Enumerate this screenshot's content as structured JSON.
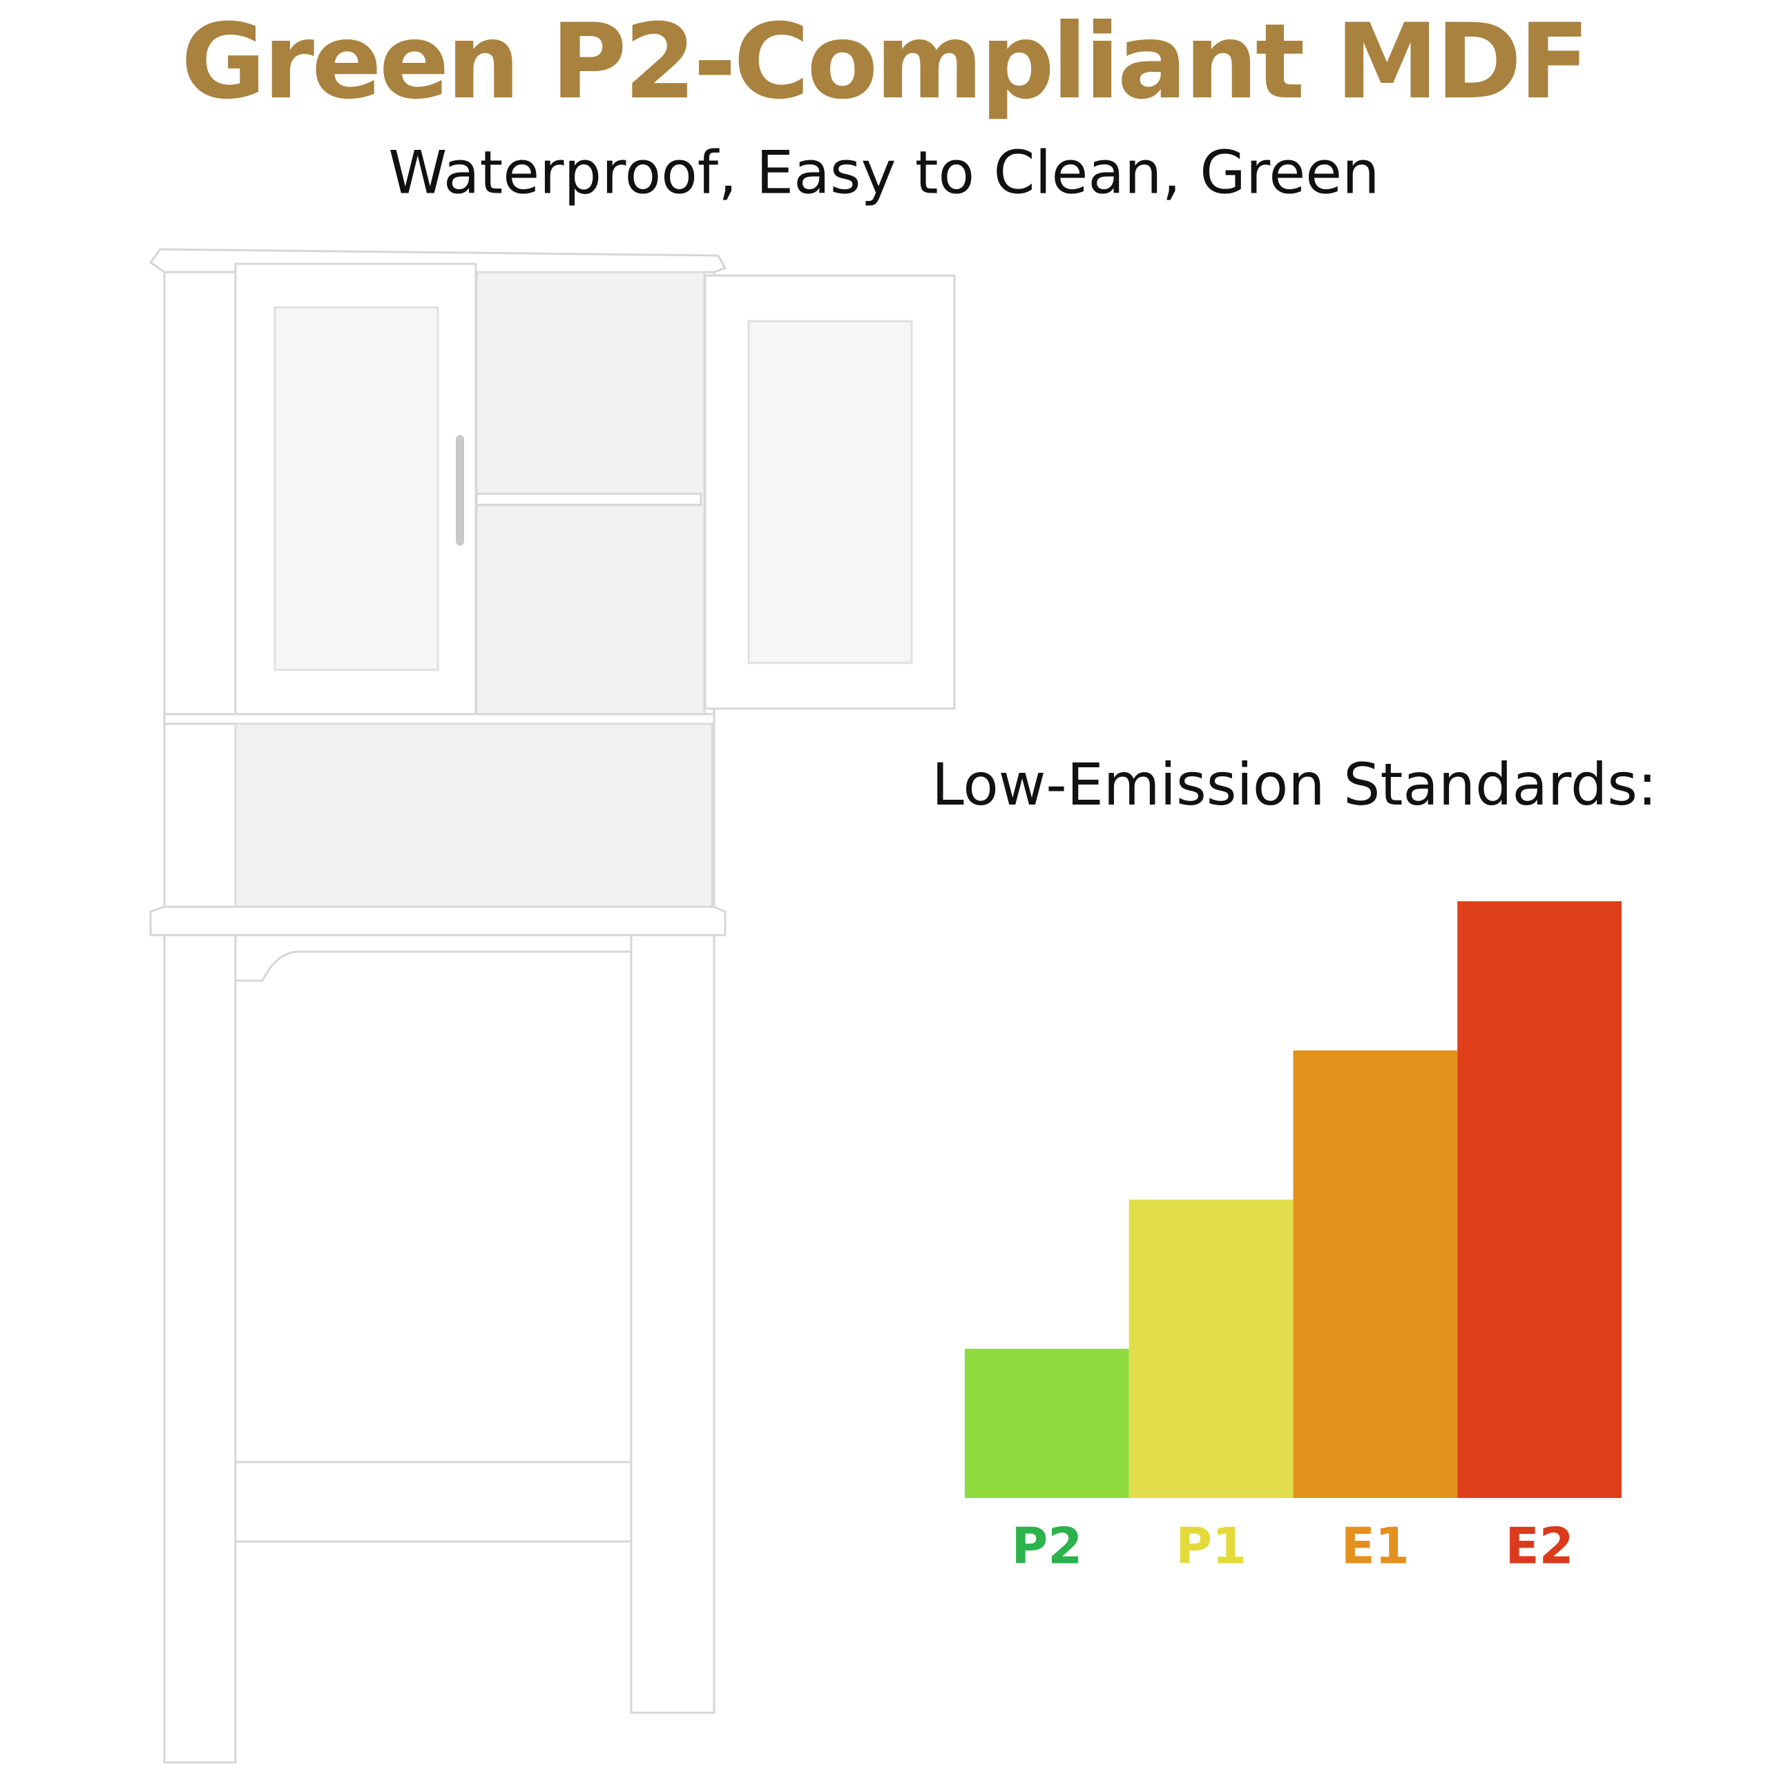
{
  "header": {
    "title": "Green P2-Compliant MDF",
    "subtitle": "Waterproof, Easy to Clean, Green"
  },
  "chart_data": {
    "type": "bar",
    "title": "Low-Emission Standards:",
    "categories": [
      "P2",
      "P1",
      "E1",
      "E2"
    ],
    "values": [
      1,
      2,
      3,
      4
    ],
    "colors": [
      "#8fdb3e",
      "#e2dd4b",
      "#e2921c",
      "#df3f1a"
    ],
    "label_colors": [
      "#2bb24c",
      "#e3da3a",
      "#e3901f",
      "#dc3a1c"
    ],
    "ylim": [
      0,
      4
    ]
  }
}
